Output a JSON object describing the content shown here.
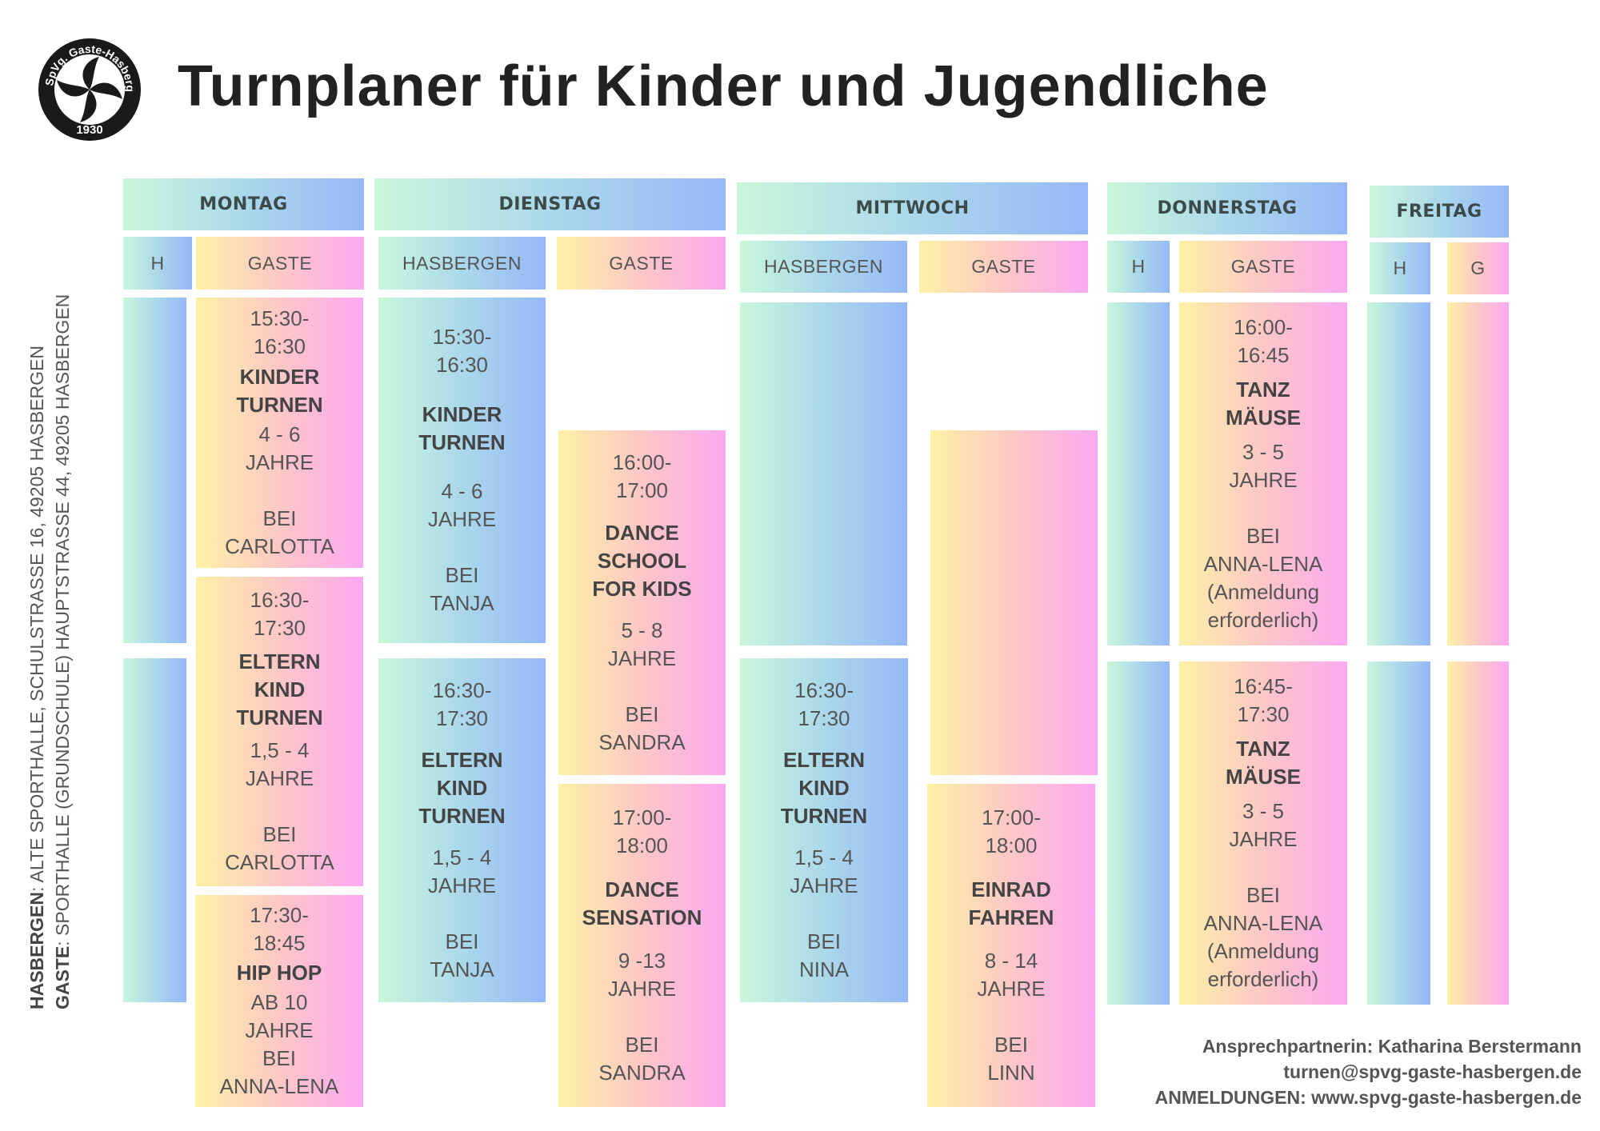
{
  "logo": {
    "text": "SpVg. Gaste-Hasbergen",
    "year": "1930"
  },
  "title": "Turnplaner für Kinder und Jugendliche",
  "locations": {
    "hasbergen_label": "HASBERGEN",
    "hasbergen_address": ": ALTE SPORTHALLE, SCHULSTRASSE 16, 49205 HASBERGEN",
    "gaste_label": "GASTE",
    "gaste_address": ": SPORTHALLE (GRUNDSCHULE) HAUPTSTRASSE 44, 49205 HASBERGEN"
  },
  "days": [
    {
      "name": "MONTAG",
      "h": "H",
      "g": "GASTE"
    },
    {
      "name": "DIENSTAG",
      "h": "HASBERGEN",
      "g": "GASTE"
    },
    {
      "name": "MITTWOCH",
      "h": "HASBERGEN",
      "g": "GASTE"
    },
    {
      "name": "DONNERSTAG",
      "h": "H",
      "g": "GASTE"
    },
    {
      "name": "FREITAG",
      "h": "H",
      "g": "G"
    }
  ],
  "sessions": [
    {
      "time": "15:30-\n16:30",
      "title": "KINDER\nTURNEN",
      "details": "4 - 6\nJAHRE\n\nBEI\nCARLOTTA"
    },
    {
      "time": "16:30-\n17:30",
      "title": "ELTERN\nKIND\nTURNEN",
      "details": "1,5 - 4\nJAHRE\n\nBEI\nCARLOTTA"
    },
    {
      "time": "17:30-\n18:45",
      "title": "HIP HOP",
      "details": "AB 10\nJAHRE\nBEI\nANNA-LENA"
    },
    {
      "time": "15:30-\n16:30",
      "title": "KINDER\nTURNEN",
      "details": "4 - 6\nJAHRE\n\nBEI\nTANJA"
    },
    {
      "time": "16:30-\n17:30",
      "title": "ELTERN\nKIND\nTURNEN",
      "details": "1,5 - 4\nJAHRE\n\nBEI\nTANJA"
    },
    {
      "time": "16:00-\n17:00",
      "title": "DANCE\nSCHOOL\nFOR KIDS",
      "details": "5 - 8\nJAHRE\n\nBEI\nSANDRA"
    },
    {
      "time": "17:00-\n18:00",
      "title": "DANCE\nSENSATION",
      "details": "9 -13\nJAHRE\n\nBEI\nSANDRA"
    },
    {
      "time": "16:30-\n17:30",
      "title": "ELTERN\nKIND\nTURNEN",
      "details": "1,5 - 4\nJAHRE\n\nBEI\nNINA"
    },
    {
      "time": "17:00-\n18:00",
      "title": "EINRAD\nFAHREN",
      "details": "8 - 14\nJAHRE\n\nBEI\nLINN"
    },
    {
      "time": "16:00-\n16:45",
      "title": "TANZ\nMÄUSE",
      "details": "3 - 5\nJAHRE\n\nBEI\nANNA-LENA\n(Anmeldung\nerforderlich)"
    },
    {
      "time": "16:45-\n17:30",
      "title": "TANZ\nMÄUSE",
      "details": "3 - 5\nJAHRE\n\nBEI\nANNA-LENA\n(Anmeldung\nerforderlich)"
    }
  ],
  "footer": {
    "contact": "Ansprechpartnerin: Katharina Berstermann",
    "email": "turnen@spvg-gaste-hasbergen.de",
    "registration": "ANMELDUNGEN: www.spvg-gaste-hasbergen.de"
  },
  "colors": {
    "blue_start": "#c9f7dc",
    "blue_end": "#96b8f8",
    "pink_start": "#fdf1a6",
    "pink_end": "#fba9f2",
    "title": "#222222"
  }
}
